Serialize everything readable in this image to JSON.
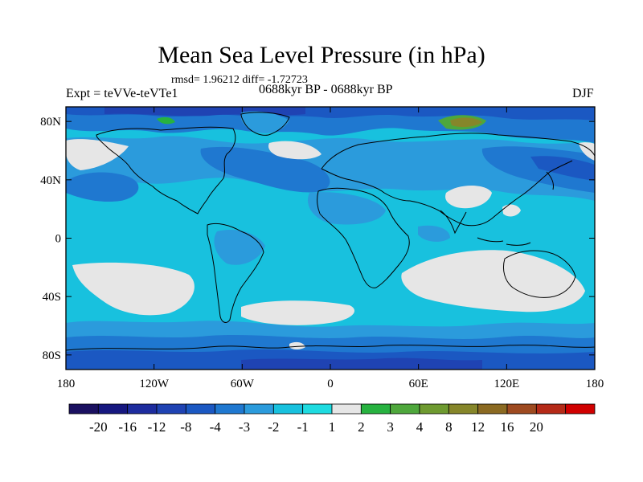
{
  "header": {
    "title": "Mean Sea Level Pressure (in hPa)",
    "stats": "rmsd= 1.96212 diff= -1.72723",
    "experiment": "Expt = teVVe-teVTe1",
    "period": "0688kyr BP - 0688kyr BP",
    "season": "DJF"
  },
  "map": {
    "projection": "cylindrical-equidistant",
    "x_ticks": [
      "180",
      "120W",
      "60W",
      "0",
      "60E",
      "120E",
      "180"
    ],
    "y_ticks": [
      "80N",
      "40N",
      "0",
      "40S",
      "80S"
    ],
    "land_outline_color": "#000000",
    "frame_color": "#000000"
  },
  "colorbar": {
    "labels": [
      "-20",
      "-16",
      "-12",
      "-8",
      "-4",
      "-3",
      "-2",
      "-1",
      "1",
      "2",
      "3",
      "4",
      "8",
      "12",
      "16",
      "20"
    ],
    "colors": [
      "#1a1060",
      "#16177f",
      "#1d2c9e",
      "#1f43b3",
      "#1b58c2",
      "#1f78d0",
      "#2b9bdc",
      "#18c1de",
      "#1edbe0",
      "#e6e6e6",
      "#27b240",
      "#4ea73c",
      "#6e9a30",
      "#86862a",
      "#8b6a22",
      "#9e4a20",
      "#b52a18",
      "#d00000"
    ]
  }
}
